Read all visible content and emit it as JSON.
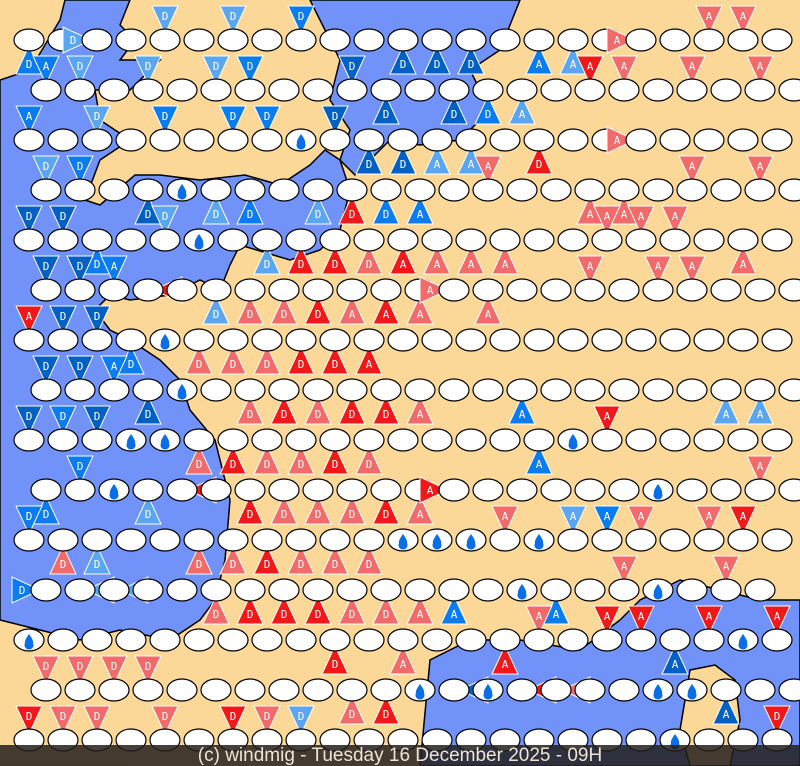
{
  "footer": {
    "caption": "(c) windmig - Tuesday 16 December 2025 - 09H"
  },
  "colors": {
    "land": "#fcd898",
    "sea": "#7192f8",
    "dark_blue": "#0060c4",
    "blue": "#0a7cf0",
    "light_blue": "#5aa6f0",
    "red": "#f01818",
    "pink": "#f26a6a",
    "drop": "#0a6ee8"
  },
  "legend_codes": {
    "d": "dark_blue",
    "b": "blue",
    "l": "light_blue",
    "r": "red",
    "p": "pink",
    ".": "empty-station",
    "w": "rain-drop-station"
  },
  "stations": [
    "bDs . lDw . lDn . lDn . bDn . . dDs dDs dDs . bAs lAs . pAw . pAn pAn .",
    "bAn lDn . lDn . lDn bDn . . dDn dDs . dDs bDs lAs . rAn pAn . pAn . pAn .",
    "bAn . lDn . bDn . bDn bDn w dDn dDs dDs lAs lAs . rDs . . pAw . . . .",
    "lDn bDn . dDs w lDs bDs . lDs rDs bDs bAs . pAn . . pAs pAs . pAn . pAn .",
    "dDn dDn bDs . lDn w . lDs rDs rDs pDs rAs pAs pAs pAs . . pAn pAn pAn . pAs .",
    "dDn dDn bAn rDe . lDs pDs pDs rDs pAs rAs pAs pAw pAs . . pAn . pAn pAn . . .",
    "rAn dDn dDn bDs w pDs pDs pDs rDs rDs rAs . . . . . . . . . . . .",
    "dDn dDn bAn dDs w . pDs rDs pDs rDs rDs pAs . . bAs . . . . . lAs lAs .",
    "dDn bDn dDn w w pDs rDs pDs pDs rDs pDs . . . . bAs w rAn . . . . .",
    "bDs bDn w lDs rDe . rDs pDs pDs pDs rDs pAs rAw . . . . . w . . pAn .",
    "bDn pDs lDs . . pDs pDs rDs pDs pDs pDs w w w pAn w lAn bAn pAn . pAn rAn .",
    "bDw lDe lDe . . pDs rDs rDs rDs pDs pDs pAs bAs . w bAs . pAn w . pAn .",
    "w . . . . . . . . rDs . pAs . . rAs pAn . rAn rAn dAs rAn w rAn",
    "pDn pDn pDn pDn . . . . . pDs rDs w dDe w rDe pDe . . w w dAs . .",
    "rDs pDs pDs . pDs . rDs pDs lDs . . . . . . . . . . w . . rDs"
  ]
}
